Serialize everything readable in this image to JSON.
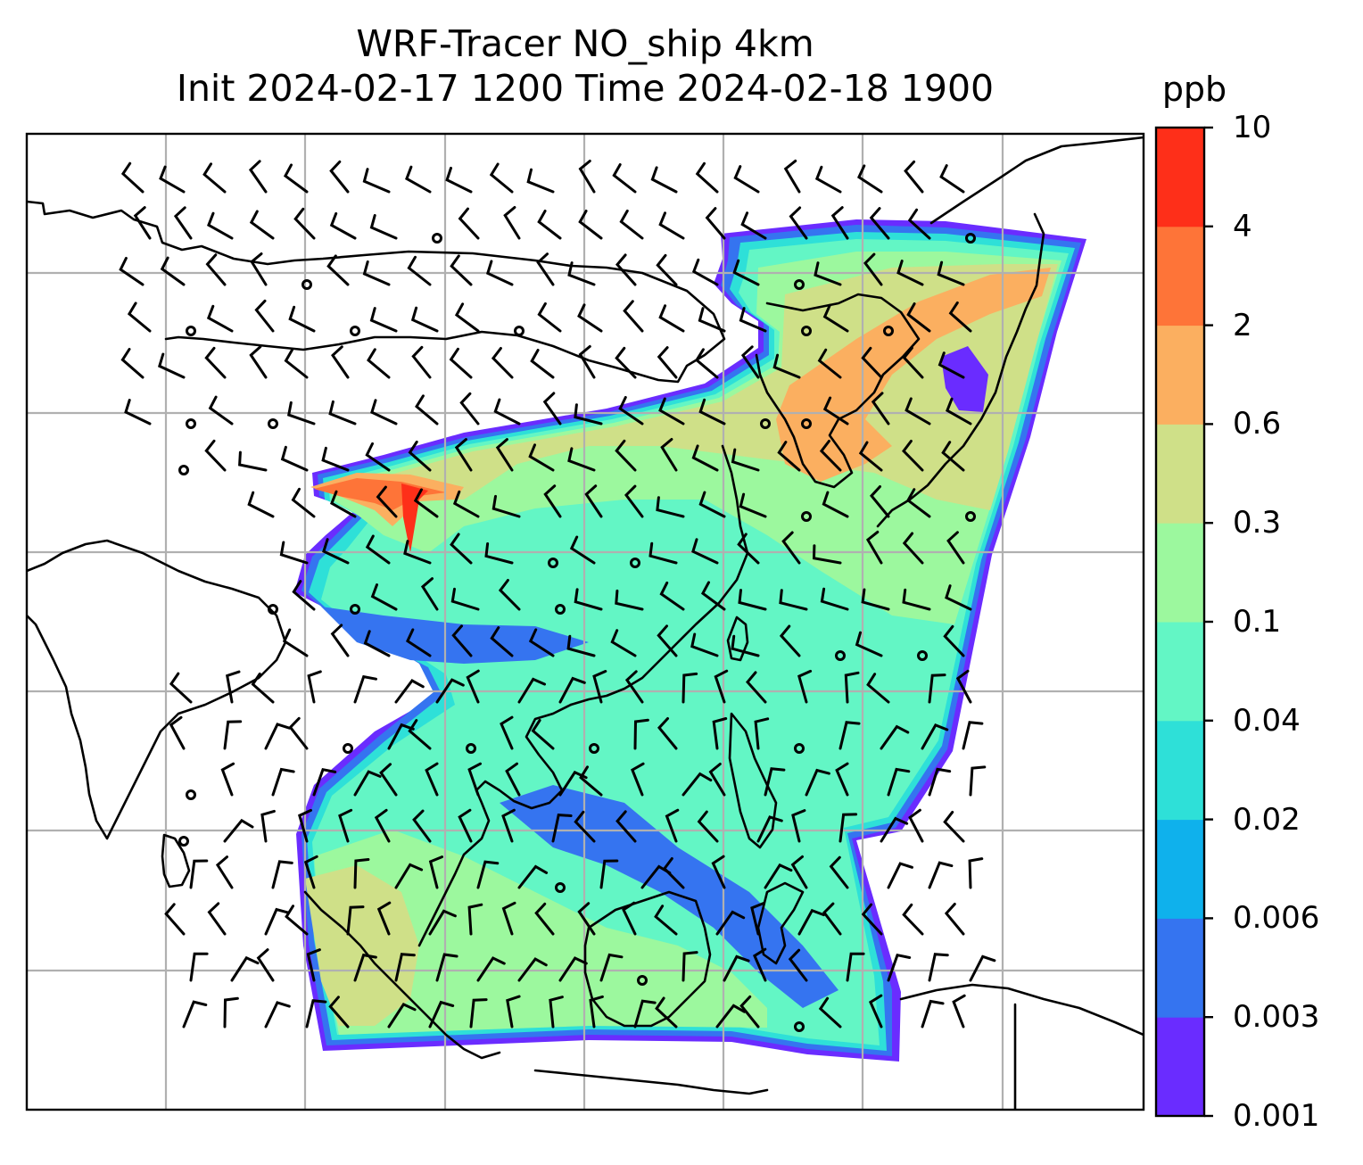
{
  "title": {
    "line1": "WRF-Tracer NO_ship 4km",
    "line2": "Init 2024-02-17 1200 Time 2024-02-18 1900"
  },
  "colorbar": {
    "unit": "ppb",
    "ticks": [
      "0.001",
      "0.003",
      "0.006",
      "0.02",
      "0.04",
      "0.1",
      "0.3",
      "0.6",
      "2",
      "4",
      "10"
    ],
    "colors": [
      "#6a2cff",
      "#3574f0",
      "#0fb1ec",
      "#2ee0d8",
      "#63f6c5",
      "#9cf89e",
      "#cfe088",
      "#fbaf60",
      "#fe7438",
      "#fe2f19"
    ]
  },
  "map": {
    "gridlines": true,
    "overlay": "wind barbs",
    "coastline_color": "#000000",
    "grid_color": "#b0b0b0"
  }
}
